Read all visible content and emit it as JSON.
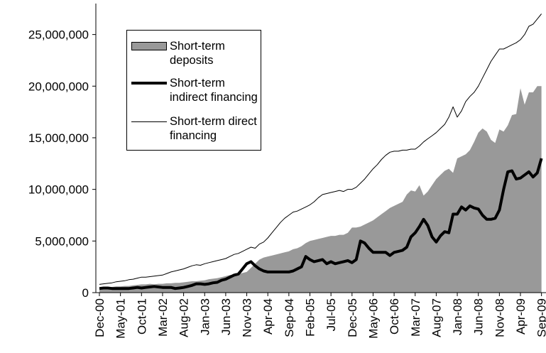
{
  "chart_data": {
    "type": "area-line",
    "categories": [
      "Dec-00",
      null,
      null,
      null,
      null,
      "May-01",
      null,
      null,
      null,
      null,
      "Oct-01",
      null,
      null,
      null,
      null,
      "Mar-02",
      null,
      null,
      null,
      null,
      "Aug-02",
      null,
      null,
      null,
      null,
      "Jan-03",
      null,
      null,
      null,
      null,
      "Jun-03",
      null,
      null,
      null,
      null,
      "Nov-03",
      null,
      null,
      null,
      null,
      "Apr-04",
      null,
      null,
      null,
      null,
      "Sep-04",
      null,
      null,
      null,
      null,
      "Feb-05",
      null,
      null,
      null,
      null,
      "Jul-05",
      null,
      null,
      null,
      null,
      "Dec-05",
      null,
      null,
      null,
      null,
      "May-06",
      null,
      null,
      null,
      null,
      "Oct-06",
      null,
      null,
      null,
      null,
      "Mar-07",
      null,
      null,
      null,
      null,
      "Aug-07",
      null,
      null,
      null,
      null,
      "Jan-08",
      null,
      null,
      null,
      null,
      "Jun-08",
      null,
      null,
      null,
      null,
      "Nov-08",
      null,
      null,
      null,
      null,
      "Apr-09",
      null,
      null,
      null,
      null,
      "Sep-09"
    ],
    "series": [
      {
        "name": "Short-term deposits",
        "kind": "area",
        "color": "#999999",
        "values": [
          500000,
          500000,
          550000,
          550000,
          600000,
          600000,
          650000,
          650000,
          700000,
          750000,
          800000,
          800000,
          850000,
          800000,
          850000,
          850000,
          900000,
          900000,
          950000,
          950000,
          1000000,
          1050000,
          1100000,
          1100000,
          1150000,
          1200000,
          1300000,
          1350000,
          1400000,
          1500000,
          1600000,
          1700000,
          1750000,
          1800000,
          1900000,
          2000000,
          2400000,
          2800000,
          3200000,
          3400000,
          3500000,
          3600000,
          3700000,
          3800000,
          3900000,
          4000000,
          4200000,
          4300000,
          4500000,
          4800000,
          5000000,
          5100000,
          5200000,
          5300000,
          5400000,
          5500000,
          5500000,
          5600000,
          5600000,
          5800000,
          6300000,
          6300000,
          6400000,
          6600000,
          6800000,
          7000000,
          7300000,
          7600000,
          7900000,
          8200000,
          8400000,
          8600000,
          8800000,
          9500000,
          9900000,
          9800000,
          10400000,
          9400000,
          9800000,
          10400000,
          11000000,
          11400000,
          11800000,
          12000000,
          11600000,
          13000000,
          13200000,
          13400000,
          13800000,
          14600000,
          15500000,
          15900000,
          15600000,
          14800000,
          14500000,
          15800000,
          15600000,
          16200000,
          17200000,
          17300000,
          19800000,
          18200000,
          19400000,
          19400000,
          20000000,
          20000000
        ]
      },
      {
        "name": "Short-term indirect financing",
        "kind": "line",
        "color": "#000000",
        "width": 4,
        "values": [
          400000,
          450000,
          450000,
          400000,
          400000,
          400000,
          400000,
          400000,
          450000,
          500000,
          450000,
          500000,
          550000,
          600000,
          550000,
          500000,
          500000,
          500000,
          400000,
          450000,
          500000,
          600000,
          700000,
          850000,
          850000,
          800000,
          850000,
          950000,
          1000000,
          1200000,
          1300000,
          1500000,
          1700000,
          1800000,
          2300000,
          2800000,
          3000000,
          2600000,
          2300000,
          2100000,
          2000000,
          2000000,
          2000000,
          2000000,
          2000000,
          2000000,
          2100000,
          2300000,
          2500000,
          3500000,
          3200000,
          3000000,
          3100000,
          3200000,
          2800000,
          3000000,
          2800000,
          2900000,
          3000000,
          3100000,
          2900000,
          3200000,
          5000000,
          4800000,
          4300000,
          3900000,
          3900000,
          3900000,
          3900000,
          3600000,
          3900000,
          4000000,
          4100000,
          4400000,
          5400000,
          5800000,
          6400000,
          7100000,
          6500000,
          5400000,
          4900000,
          5500000,
          5900000,
          5800000,
          7600000,
          7600000,
          8300000,
          8000000,
          8400000,
          8200000,
          8100000,
          7500000,
          7100000,
          7100000,
          7200000,
          8000000,
          10000000,
          11700000,
          11800000,
          11000000,
          11100000,
          11400000,
          11700000,
          11200000,
          11600000,
          13000000
        ]
      },
      {
        "name": "Short-term direct financing",
        "kind": "line",
        "color": "#000000",
        "width": 1,
        "values": [
          800000,
          850000,
          900000,
          950000,
          1050000,
          1100000,
          1150000,
          1250000,
          1300000,
          1400000,
          1500000,
          1500000,
          1550000,
          1600000,
          1650000,
          1700000,
          1850000,
          2000000,
          2100000,
          2200000,
          2300000,
          2450000,
          2600000,
          2700000,
          2650000,
          2800000,
          2900000,
          3000000,
          3100000,
          3200000,
          3300000,
          3500000,
          3700000,
          3800000,
          4000000,
          4200000,
          4400000,
          4300000,
          4700000,
          4900000,
          5300000,
          5800000,
          6300000,
          6800000,
          7200000,
          7500000,
          7800000,
          7900000,
          8100000,
          8300000,
          8500000,
          8800000,
          9200000,
          9500000,
          9600000,
          9700000,
          9800000,
          9900000,
          9800000,
          10000000,
          10000000,
          10200000,
          10600000,
          11000000,
          11500000,
          12000000,
          12400000,
          12900000,
          13300000,
          13600000,
          13700000,
          13700000,
          13800000,
          13800000,
          13900000,
          13900000,
          14200000,
          14600000,
          14900000,
          15200000,
          15500000,
          15900000,
          16300000,
          17000000,
          18000000,
          17000000,
          17600000,
          18500000,
          19000000,
          19400000,
          20000000,
          20800000,
          21600000,
          22400000,
          23000000,
          23600000,
          23600000,
          23800000,
          24000000,
          24200000,
          24500000,
          25000000,
          25800000,
          26000000,
          26500000,
          27000000
        ]
      }
    ],
    "ylim": [
      0,
      28000000
    ],
    "yticks": [
      0,
      {
        "value": 5000000,
        "label": "5,000,000"
      },
      {
        "value": 10000000,
        "label": "10,000,000"
      },
      {
        "value": 15000000,
        "label": "15,000,000"
      },
      {
        "value": 20000000,
        "label": "20,000,000"
      },
      {
        "value": 25000000,
        "label": "25,000,000"
      }
    ],
    "legend": "upper left"
  }
}
